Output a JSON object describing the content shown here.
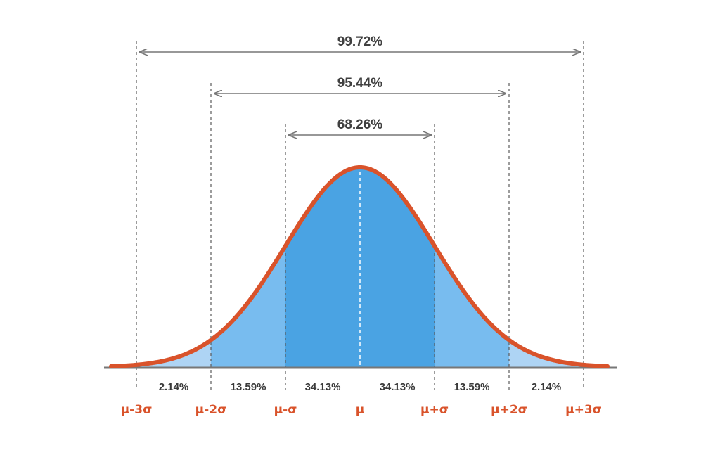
{
  "colors": {
    "curve": "#d9532b",
    "outer_fill": "#aed4f4",
    "mid_fill": "#78bcef",
    "inner_fill": "#4aa3e3",
    "axis": "#777777",
    "guide": "#5a5a5a",
    "arrow": "#777777",
    "sigma_text": "#d9532b",
    "text": "#404040"
  },
  "ranges": [
    {
      "label": "99.72%",
      "from": -3,
      "to": 3
    },
    {
      "label": "95.44%",
      "from": -2,
      "to": 2
    },
    {
      "label": "68.26%",
      "from": -1,
      "to": 1
    }
  ],
  "segments": [
    {
      "label": "2.14%",
      "from": -3,
      "to": -2
    },
    {
      "label": "13.59%",
      "from": -2,
      "to": -1
    },
    {
      "label": "34.13%",
      "from": -1,
      "to": 0
    },
    {
      "label": "34.13%",
      "from": 0,
      "to": 1
    },
    {
      "label": "13.59%",
      "from": 1,
      "to": 2
    },
    {
      "label": "2.14%",
      "from": 2,
      "to": 3
    }
  ],
  "sigma_labels": [
    {
      "label": "μ-3σ",
      "at": -3
    },
    {
      "label": "μ-2σ",
      "at": -2
    },
    {
      "label": "μ-σ",
      "at": -1
    },
    {
      "label": "μ",
      "at": 0
    },
    {
      "label": "μ+σ",
      "at": 1
    },
    {
      "label": "μ+2σ",
      "at": 2
    },
    {
      "label": "μ+3σ",
      "at": 3
    }
  ]
}
